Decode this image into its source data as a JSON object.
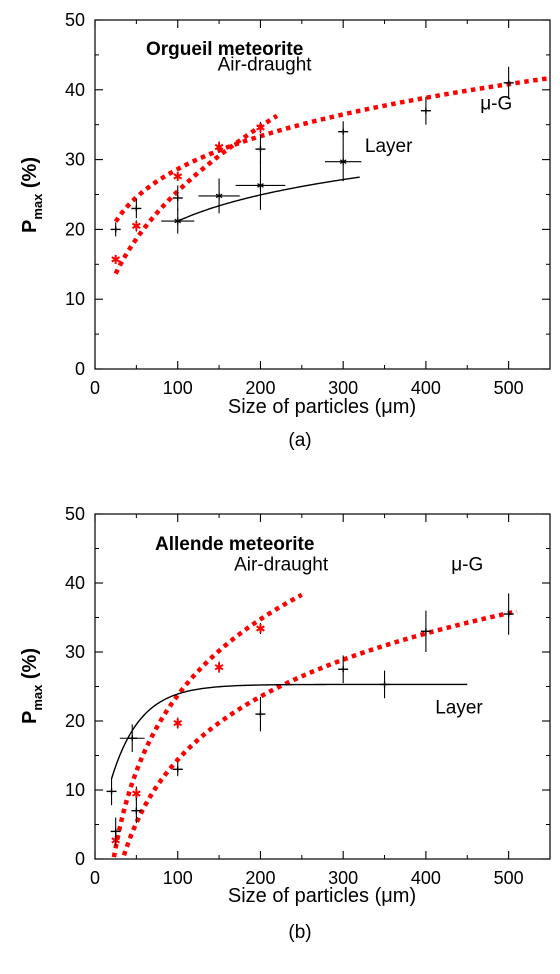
{
  "chart_data": [
    {
      "type": "scatter",
      "panel_label": "(a)",
      "title": "Orgueil meteorite",
      "xlabel": "Size of particles (μm)",
      "ylabel_main": "P",
      "ylabel_sub": "max",
      "ylabel_tail": " (%)",
      "xlim": [
        0,
        550
      ],
      "ylim": [
        0,
        50
      ],
      "xticks": [
        0,
        100,
        200,
        300,
        400,
        500
      ],
      "yticks": [
        0,
        10,
        20,
        30,
        40,
        50
      ],
      "grid": false,
      "series": [
        {
          "name": "Air-draught",
          "color": "#ff0000",
          "marker": "asterisk",
          "points": [
            {
              "x": 25,
              "y": 15.7,
              "xerr": 0,
              "yerr": 0.6
            },
            {
              "x": 50,
              "y": 20.5,
              "xerr": 0,
              "yerr": 0.8
            },
            {
              "x": 100,
              "y": 27.6,
              "xerr": 0,
              "yerr": 0.6
            },
            {
              "x": 150,
              "y": 31.8,
              "xerr": 0,
              "yerr": 0.8
            },
            {
              "x": 200,
              "y": 34.6,
              "xerr": 0,
              "yerr": 0.8
            }
          ],
          "fit": {
            "kind": "power",
            "a": 3.22,
            "b": 0.449,
            "x_from": 25,
            "x_to": 220,
            "style": "dotted"
          }
        },
        {
          "name": "μ-G",
          "color": "#000000",
          "marker": "plus",
          "points": [
            {
              "x": 25,
              "y": 20.0,
              "xerr": 0,
              "yerr": 1.0
            },
            {
              "x": 50,
              "y": 23.0,
              "xerr": 0,
              "yerr": 1.4
            },
            {
              "x": 100,
              "y": 24.5,
              "xerr": 0,
              "yerr": 1.8
            },
            {
              "x": 200,
              "y": 31.5,
              "xerr": 0,
              "yerr": 2.0
            },
            {
              "x": 300,
              "y": 34.0,
              "xerr": 0,
              "yerr": 1.5
            },
            {
              "x": 400,
              "y": 37.0,
              "xerr": 0,
              "yerr": 2.0
            },
            {
              "x": 500,
              "y": 41.0,
              "xerr": 0,
              "yerr": 2.3
            }
          ],
          "fit": {
            "kind": "power",
            "a": 10.4,
            "b": 0.22,
            "x_from": 25,
            "x_to": 550,
            "style": "dotted",
            "color": "#ff0000"
          }
        },
        {
          "name": "Layer",
          "color": "#000000",
          "marker": "asterisk",
          "points": [
            {
              "x": 100,
              "y": 21.2,
              "xerr": 20,
              "yerr": 1.8
            },
            {
              "x": 150,
              "y": 24.8,
              "xerr": 25,
              "yerr": 2.5
            },
            {
              "x": 200,
              "y": 26.3,
              "xerr": 30,
              "yerr": 3.5
            },
            {
              "x": 300,
              "y": 29.7,
              "xerr": 22,
              "yerr": 2.8
            }
          ],
          "fit": {
            "kind": "log",
            "a": -3.83,
            "b": 5.43,
            "x_from": 100,
            "x_to": 320,
            "style": "solid"
          }
        }
      ],
      "annotations": [
        {
          "text": "Air-draught",
          "x": 205,
          "y": 42.8
        },
        {
          "text": "μ-G",
          "x": 485,
          "y": 37.2
        },
        {
          "text": "Layer",
          "x": 355,
          "y": 31.1
        }
      ]
    },
    {
      "type": "scatter",
      "panel_label": "(b)",
      "title": "Allende meteorite",
      "xlabel": "Size of particles (μm)",
      "ylabel_main": "P",
      "ylabel_sub": "max",
      "ylabel_tail": " (%)",
      "xlim": [
        0,
        550
      ],
      "ylim": [
        0,
        50
      ],
      "xticks": [
        0,
        100,
        200,
        300,
        400,
        500
      ],
      "yticks": [
        0,
        10,
        20,
        30,
        40,
        50
      ],
      "grid": false,
      "series": [
        {
          "name": "Air-draught",
          "color": "#ff0000",
          "marker": "asterisk",
          "points": [
            {
              "x": 25,
              "y": 2.7,
              "xerr": 0,
              "yerr": 0.8
            },
            {
              "x": 50,
              "y": 9.5,
              "xerr": 0,
              "yerr": 1.0
            },
            {
              "x": 100,
              "y": 19.7,
              "xerr": 0,
              "yerr": 0.8
            },
            {
              "x": 150,
              "y": 27.8,
              "xerr": 0,
              "yerr": 0.8
            },
            {
              "x": 200,
              "y": 33.4,
              "xerr": 0,
              "yerr": 0.8
            }
          ],
          "fit": {
            "kind": "log",
            "a": -49.5,
            "b": 15.9,
            "x_from": 20,
            "x_to": 250,
            "style": "dotted"
          }
        },
        {
          "name": "μ-G",
          "color": "#000000",
          "marker": "plus",
          "points": [
            {
              "x": 25,
              "y": 4.0,
              "xerr": 0,
              "yerr": 2.0
            },
            {
              "x": 50,
              "y": 7.0,
              "xerr": 0,
              "yerr": 1.8
            },
            {
              "x": 100,
              "y": 13.0,
              "xerr": 0,
              "yerr": 1.0
            },
            {
              "x": 200,
              "y": 21.0,
              "xerr": 0,
              "yerr": 2.5
            },
            {
              "x": 300,
              "y": 27.5,
              "xerr": 0,
              "yerr": 2.0
            },
            {
              "x": 400,
              "y": 33.0,
              "xerr": 0,
              "yerr": 3.0
            },
            {
              "x": 500,
              "y": 35.5,
              "xerr": 0,
              "yerr": 3.0
            }
          ],
          "fit": {
            "kind": "log",
            "a": -46.4,
            "b": 13.2,
            "x_from": 35,
            "x_to": 510,
            "style": "dotted",
            "color": "#ff0000"
          }
        },
        {
          "name": "Layer",
          "color": "#000000",
          "marker": "plus",
          "points": [
            {
              "x": 20,
              "y": 9.8,
              "xerr": 0,
              "yerr": 2.0
            },
            {
              "x": 45,
              "y": 17.5,
              "xerr": 15,
              "yerr": 2.0
            },
            {
              "x": 350,
              "y": 25.3,
              "xerr": 0,
              "yerr": 2.0
            }
          ],
          "fit": {
            "kind": "exp",
            "c": 25.3,
            "d": 24.2,
            "t": 35,
            "x_from": 20,
            "x_to": 450,
            "style": "solid"
          }
        }
      ],
      "annotations": [
        {
          "text": "Air-draught",
          "x": 225,
          "y": 41.8
        },
        {
          "text": "μ-G",
          "x": 450,
          "y": 41.8
        },
        {
          "text": "Layer",
          "x": 440,
          "y": 21.1
        }
      ]
    }
  ]
}
